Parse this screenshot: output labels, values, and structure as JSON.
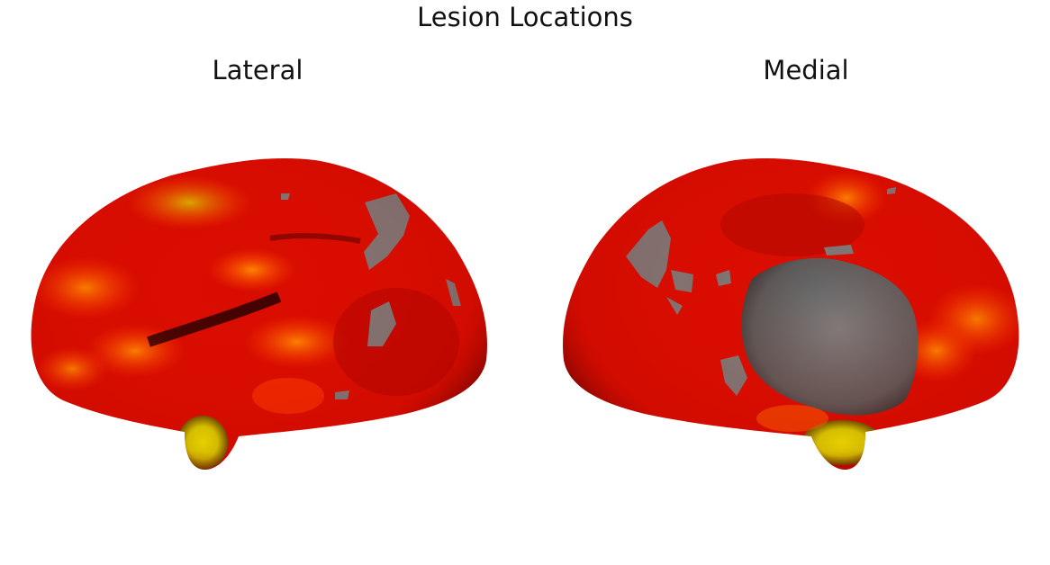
{
  "figure": {
    "title": "Lesion Locations",
    "panels": [
      {
        "title": "Lateral"
      },
      {
        "title": "Medial"
      }
    ]
  },
  "colors": {
    "background": "#ffffff",
    "surface_low": "#1a0000",
    "surface_mid": "#d80c00",
    "surface_high": "#ff5a00",
    "surface_peak": "#e8e800",
    "unlesioned": "#7a7a7a"
  }
}
